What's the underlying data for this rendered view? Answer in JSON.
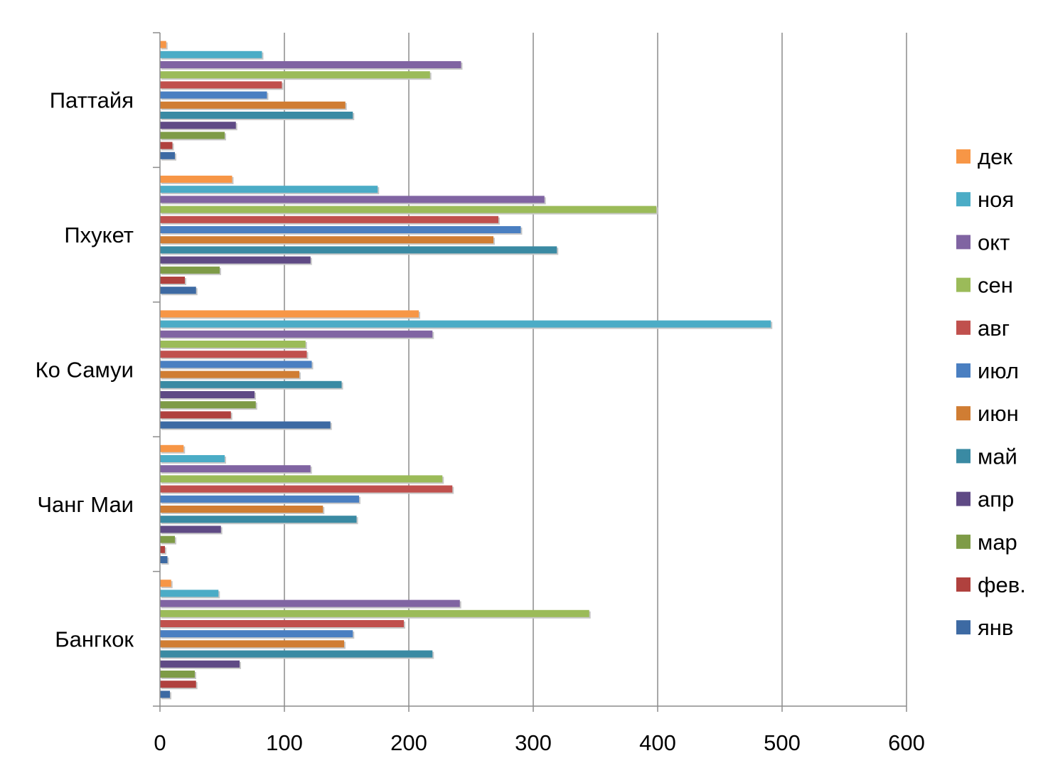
{
  "chart_data": {
    "type": "bar",
    "orientation": "horizontal",
    "categories": [
      "Бангкок",
      "Чанг Маи",
      "Ко Самуи",
      "Пхукет",
      "Паттайя"
    ],
    "series": [
      {
        "name": "янв",
        "color": "#3d6aa3",
        "values": [
          8,
          6,
          137,
          29,
          12
        ]
      },
      {
        "name": "фев.",
        "color": "#b0413e",
        "values": [
          29,
          4,
          57,
          20,
          10
        ]
      },
      {
        "name": "мар",
        "color": "#7e9b47",
        "values": [
          28,
          12,
          77,
          48,
          52
        ]
      },
      {
        "name": "апр",
        "color": "#5f4a85",
        "values": [
          64,
          49,
          76,
          121,
          61
        ]
      },
      {
        "name": "май",
        "color": "#3a8aa3",
        "values": [
          219,
          158,
          146,
          319,
          155
        ]
      },
      {
        "name": "июн",
        "color": "#d07d33",
        "values": [
          148,
          131,
          112,
          268,
          149
        ]
      },
      {
        "name": "июл",
        "color": "#4a7fc1",
        "values": [
          155,
          160,
          122,
          290,
          86
        ]
      },
      {
        "name": "авг",
        "color": "#c0504d",
        "values": [
          196,
          235,
          118,
          272,
          98
        ]
      },
      {
        "name": "сен",
        "color": "#9bbb59",
        "values": [
          345,
          227,
          117,
          399,
          217
        ]
      },
      {
        "name": "окт",
        "color": "#8064a2",
        "values": [
          241,
          121,
          219,
          309,
          242
        ]
      },
      {
        "name": "ноя",
        "color": "#4bacc6",
        "values": [
          47,
          52,
          491,
          175,
          82
        ]
      },
      {
        "name": "дек",
        "color": "#f79646",
        "values": [
          9,
          19,
          208,
          58,
          5
        ]
      }
    ],
    "xlim": [
      0,
      600
    ],
    "xticks": [
      "0",
      "100",
      "200",
      "300",
      "400",
      "500",
      "600"
    ],
    "grid": true,
    "legend": "right",
    "legend_order": [
      "дек",
      "ноя",
      "окт",
      "сен",
      "авг",
      "июл",
      "июн",
      "май",
      "апр",
      "мар",
      "фев.",
      "янв"
    ]
  }
}
